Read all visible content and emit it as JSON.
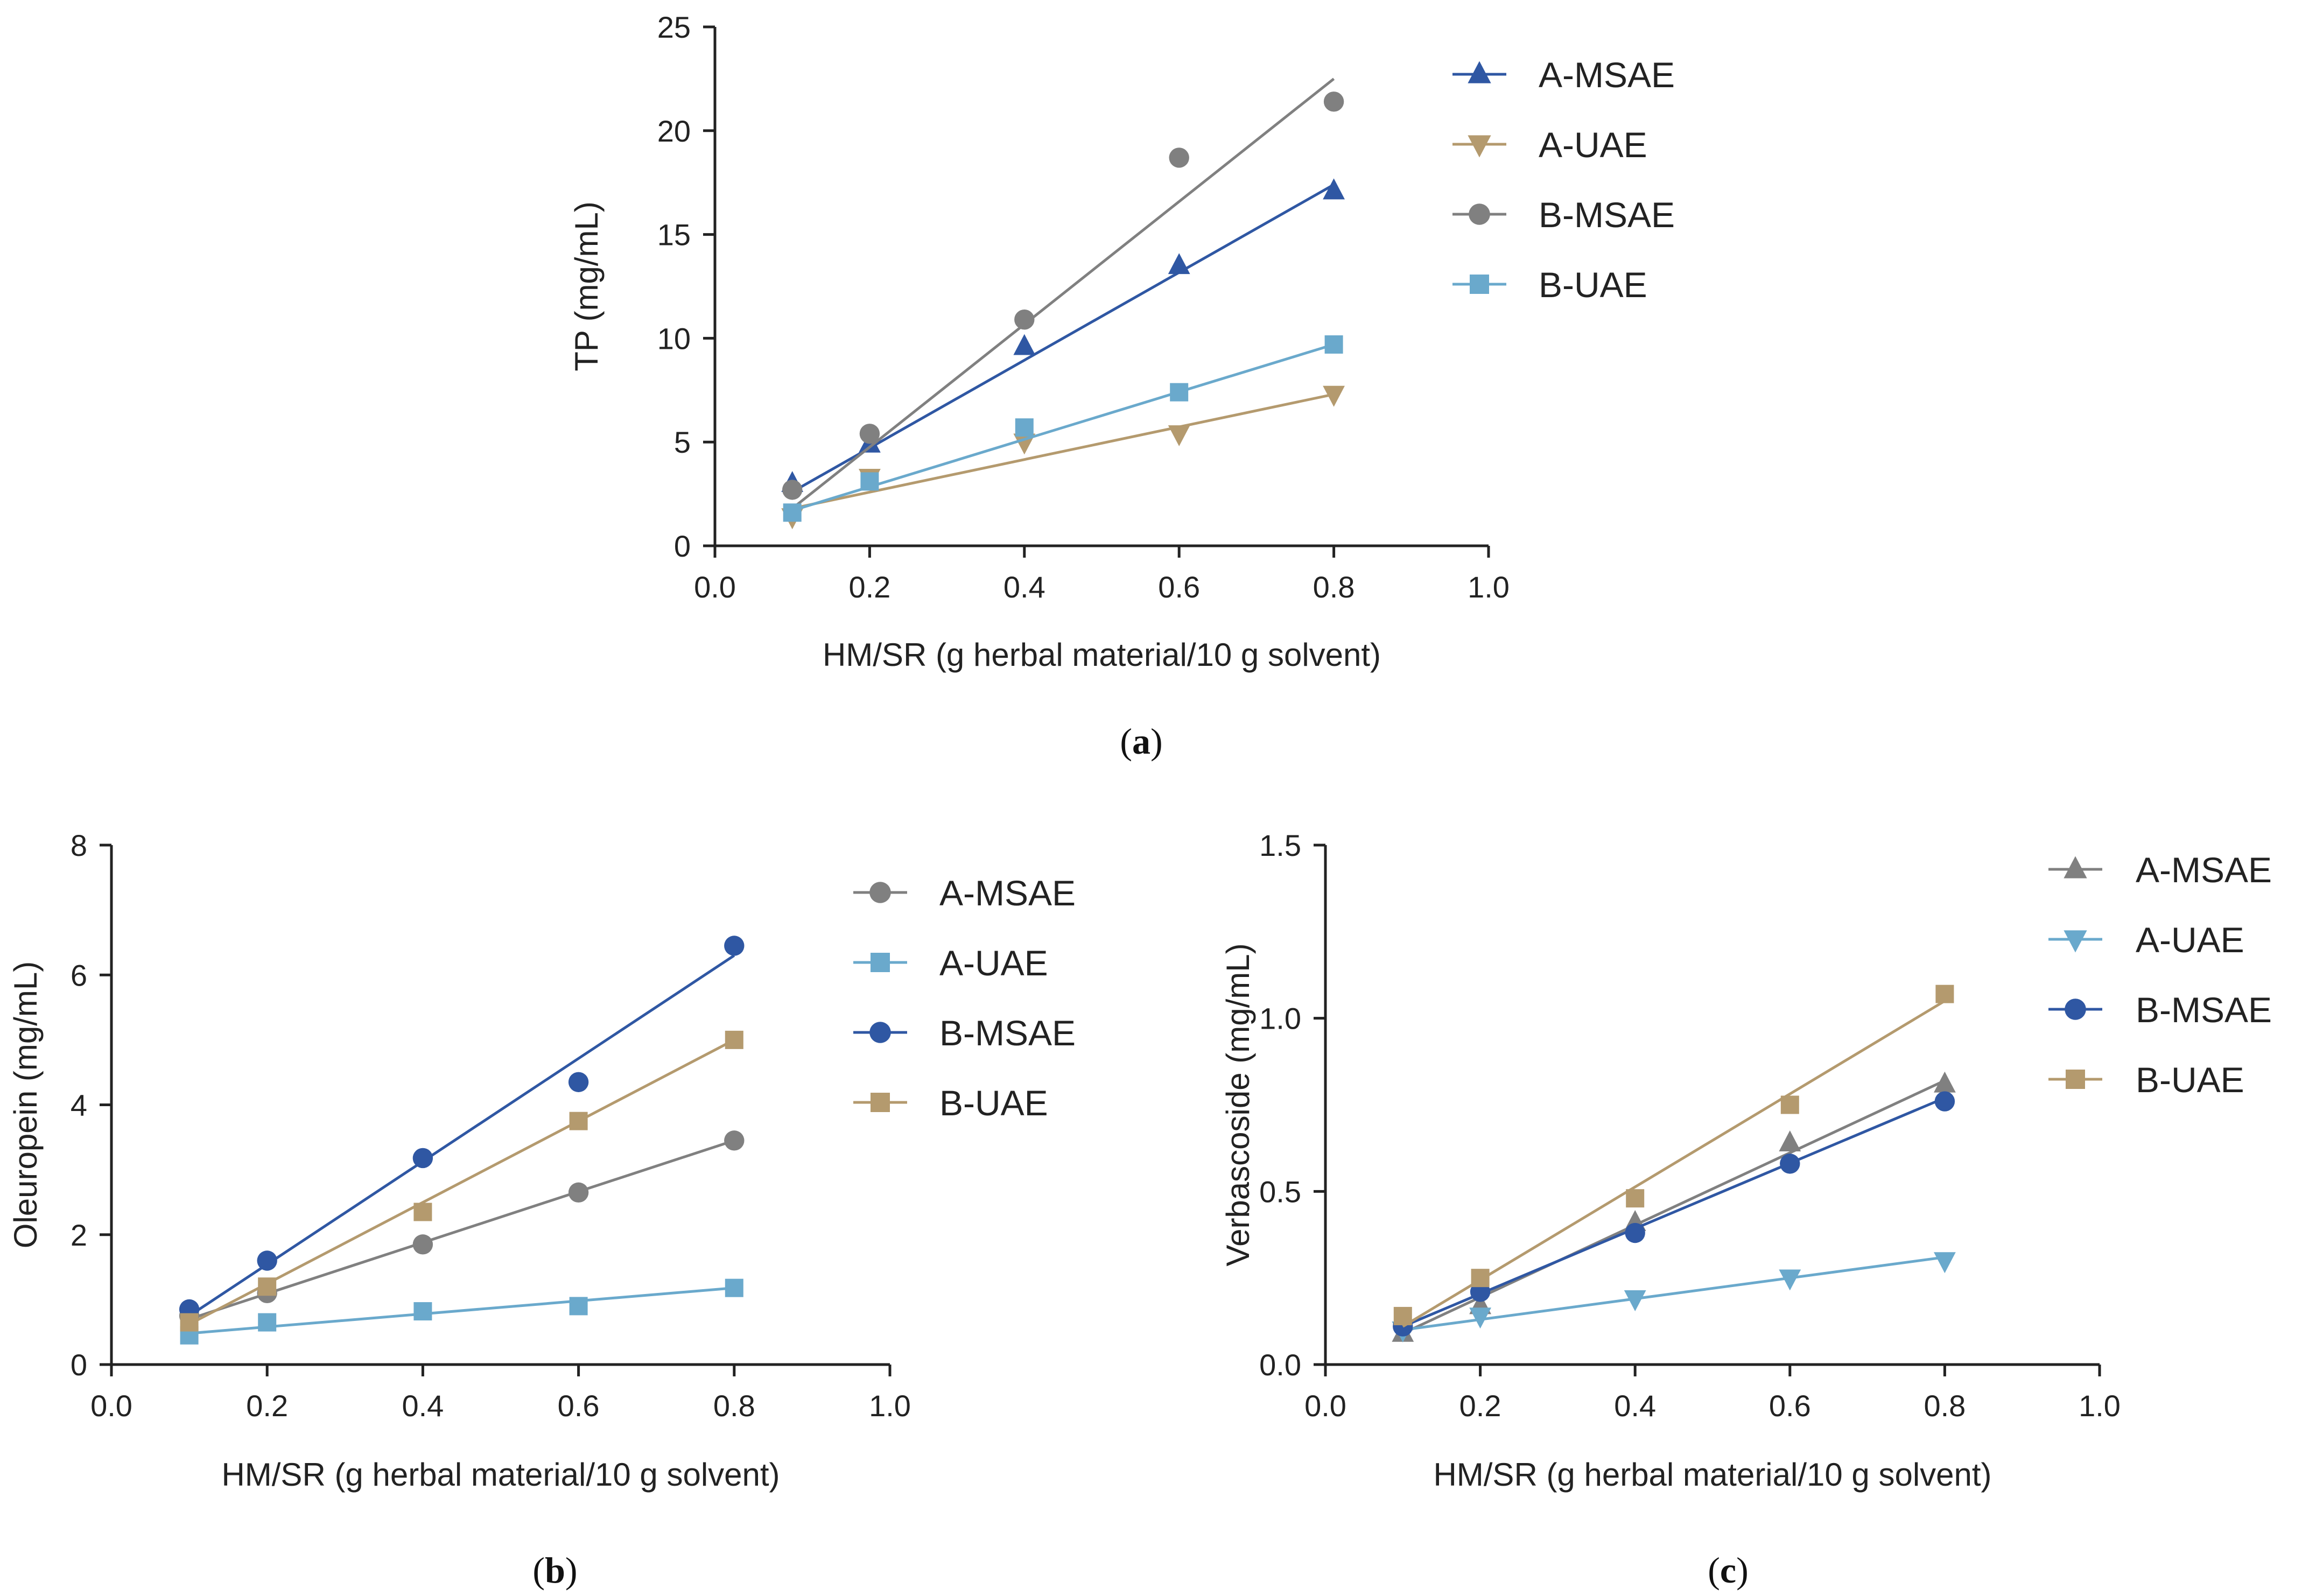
{
  "chart_data": [
    {
      "id": "a",
      "type": "scatter",
      "panel_label": "a",
      "xlabel": "HM/SR (g herbal material/10 g solvent)",
      "ylabel": "TP (mg/mL)",
      "xlim": [
        0,
        1.0
      ],
      "ylim": [
        0,
        25
      ],
      "xticks": [
        0.0,
        0.2,
        0.4,
        0.6,
        0.8,
        1.0
      ],
      "xtick_labels": [
        "0.0",
        "0.2",
        "0.4",
        "0.6",
        "0.8",
        "1.0"
      ],
      "yticks": [
        0,
        5,
        10,
        15,
        20,
        25
      ],
      "ytick_labels": [
        "0",
        "5",
        "10",
        "15",
        "20",
        "25"
      ],
      "legend_position": "right",
      "x": [
        0.1,
        0.2,
        0.4,
        0.6,
        0.8
      ],
      "series": [
        {
          "name": "A-MSAE",
          "marker": "triangle-up",
          "color": "#2f57a3",
          "values": [
            3.0,
            4.9,
            9.6,
            13.5,
            17.1
          ],
          "fit": [
            2.6,
            17.4
          ]
        },
        {
          "name": "A-UAE",
          "marker": "triangle-down",
          "color": "#b49a6e",
          "values": [
            1.4,
            3.3,
            5.0,
            5.4,
            7.3
          ],
          "fit": [
            1.8,
            7.3
          ]
        },
        {
          "name": "B-MSAE",
          "marker": "circle",
          "color": "#808080",
          "values": [
            2.7,
            5.4,
            10.9,
            18.7,
            21.4
          ],
          "fit": [
            1.8,
            22.5
          ]
        },
        {
          "name": "B-UAE",
          "marker": "square",
          "color": "#6aa9cc",
          "values": [
            1.6,
            3.1,
            5.7,
            7.4,
            9.7
          ],
          "fit": [
            1.7,
            9.7
          ]
        }
      ]
    },
    {
      "id": "b",
      "type": "scatter",
      "panel_label": "b",
      "xlabel": "HM/SR (g herbal material/10 g solvent)",
      "ylabel": "Oleuropein (mg/mL)",
      "xlim": [
        0,
        1.0
      ],
      "ylim": [
        0,
        8
      ],
      "xticks": [
        0.0,
        0.2,
        0.4,
        0.6,
        0.8,
        1.0
      ],
      "xtick_labels": [
        "0.0",
        "0.2",
        "0.4",
        "0.6",
        "0.8",
        "1.0"
      ],
      "yticks": [
        0,
        2,
        4,
        6,
        8
      ],
      "ytick_labels": [
        "0",
        "2",
        "4",
        "6",
        "8"
      ],
      "legend_position": "right",
      "x": [
        0.1,
        0.2,
        0.4,
        0.6,
        0.8
      ],
      "series": [
        {
          "name": "A-MSAE",
          "marker": "circle",
          "color": "#808080",
          "values": [
            0.75,
            1.1,
            1.85,
            2.65,
            3.45
          ],
          "fit": [
            0.7,
            3.45
          ]
        },
        {
          "name": "A-UAE",
          "marker": "square",
          "color": "#6aa9cc",
          "values": [
            0.45,
            0.65,
            0.82,
            0.9,
            1.18
          ],
          "fit": [
            0.48,
            1.18
          ]
        },
        {
          "name": "B-MSAE",
          "marker": "circle",
          "color": "#2f57a3",
          "values": [
            0.85,
            1.6,
            3.18,
            4.35,
            6.45
          ],
          "fit": [
            0.75,
            6.3
          ]
        },
        {
          "name": "B-UAE",
          "marker": "square",
          "color": "#b49a6e",
          "values": [
            0.65,
            1.2,
            2.35,
            3.75,
            5.0
          ],
          "fit": [
            0.62,
            5.0
          ]
        }
      ]
    },
    {
      "id": "c",
      "type": "scatter",
      "panel_label": "c",
      "xlabel": "HM/SR (g herbal material/10 g solvent)",
      "ylabel": "Verbascoside (mg/mL)",
      "xlim": [
        0,
        1.0
      ],
      "ylim": [
        0,
        1.5
      ],
      "xticks": [
        0.0,
        0.2,
        0.4,
        0.6,
        0.8,
        1.0
      ],
      "xtick_labels": [
        "0.0",
        "0.2",
        "0.4",
        "0.6",
        "0.8",
        "1.0"
      ],
      "yticks": [
        0,
        0.5,
        1.0,
        1.5
      ],
      "ytick_labels": [
        "0.0",
        "0.5",
        "1.0",
        "1.5"
      ],
      "legend_position": "right",
      "x": [
        0.1,
        0.2,
        0.4,
        0.6,
        0.8
      ],
      "series": [
        {
          "name": "A-MSAE",
          "marker": "triangle-up",
          "color": "#808080",
          "values": [
            0.09,
            0.17,
            0.41,
            0.64,
            0.81
          ],
          "fit": [
            0.09,
            0.82
          ]
        },
        {
          "name": "A-UAE",
          "marker": "triangle-down",
          "color": "#6aa9cc",
          "values": [
            0.1,
            0.14,
            0.19,
            0.25,
            0.3
          ],
          "fit": [
            0.1,
            0.31
          ]
        },
        {
          "name": "B-MSAE",
          "marker": "circle",
          "color": "#2f57a3",
          "values": [
            0.11,
            0.21,
            0.38,
            0.58,
            0.76
          ],
          "fit": [
            0.11,
            0.77
          ]
        },
        {
          "name": "B-UAE",
          "marker": "square",
          "color": "#b49a6e",
          "values": [
            0.14,
            0.25,
            0.48,
            0.75,
            1.07
          ],
          "fit": [
            0.11,
            1.05
          ]
        }
      ]
    }
  ]
}
